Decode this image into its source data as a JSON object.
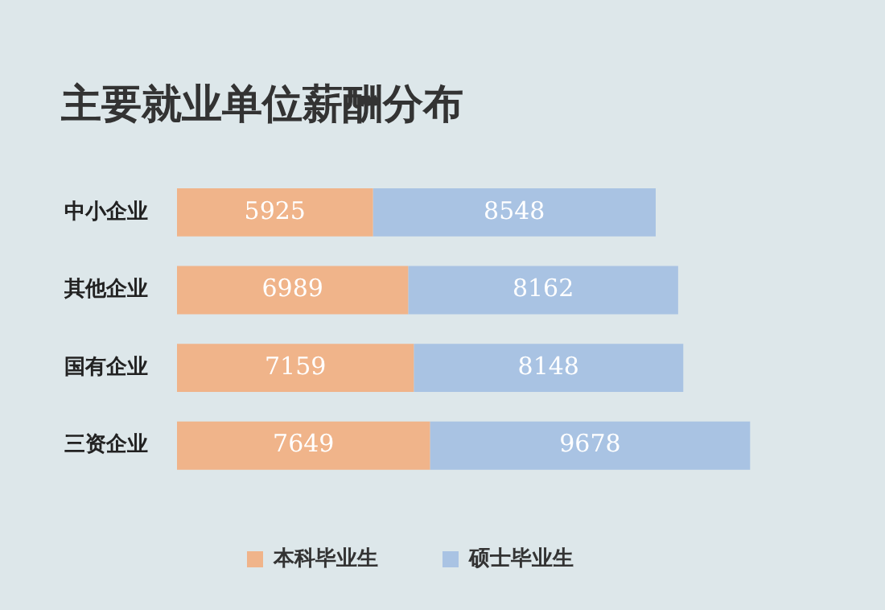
{
  "chart_data": {
    "type": "bar",
    "orientation": "horizontal",
    "stacked": true,
    "title": "主要就业单位薪酬分布",
    "categories": [
      "中小企业",
      "其他企业",
      "国有企业",
      "三资企业"
    ],
    "series": [
      {
        "name": "本科毕业生",
        "color": "#f0b48a",
        "values": [
          5925,
          6989,
          7159,
          7649
        ]
      },
      {
        "name": "硕士毕业生",
        "color": "#a9c3e3",
        "values": [
          8548,
          8162,
          8148,
          9678
        ]
      }
    ],
    "data_labels": true,
    "legend": "bottom"
  }
}
